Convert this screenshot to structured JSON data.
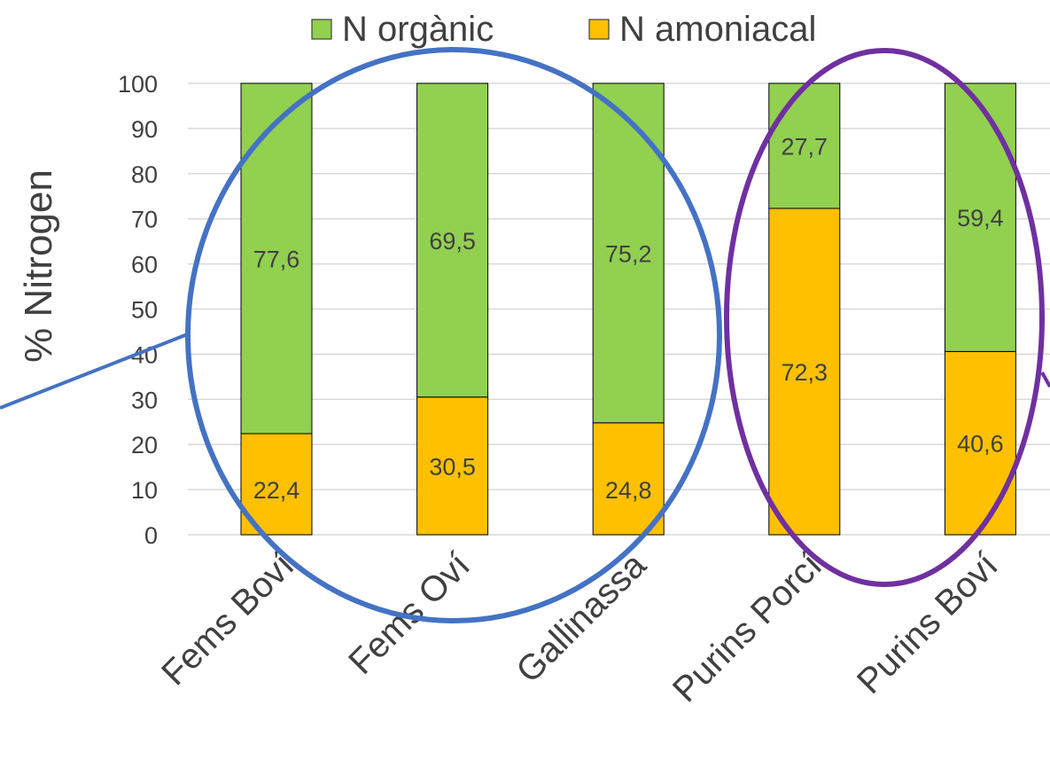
{
  "chart_data": {
    "type": "bar",
    "stacked": true,
    "categories": [
      "Fems Boví",
      "Fems Oví",
      "Gallinassa",
      "Purins Porcí",
      "Purins Boví"
    ],
    "series": [
      {
        "name": "N amoniacal",
        "color": "#FFC000",
        "values": [
          22.4,
          30.5,
          24.8,
          72.3,
          40.6
        ],
        "labels": [
          "22,4",
          "30,5",
          "24,8",
          "72,3",
          "40,6"
        ]
      },
      {
        "name": "N orgànic",
        "color": "#92D050",
        "values": [
          77.6,
          69.5,
          75.2,
          27.7,
          59.4
        ],
        "labels": [
          "77,6",
          "69,5",
          "75,2",
          "27,7",
          "59,4"
        ]
      }
    ],
    "legend_order": [
      "N orgànic",
      "N amoniacal"
    ],
    "legend_position": "top",
    "ylabel": "% Nitrogen",
    "ylim": [
      0,
      100
    ],
    "yticks": [
      0,
      10,
      20,
      30,
      40,
      50,
      60,
      70,
      80,
      90,
      100
    ],
    "grid": true,
    "annotations": [
      {
        "shape": "ellipse",
        "color": "#4472C4",
        "groups": [
          "Fems Boví",
          "Fems Oví",
          "Gallinassa"
        ]
      },
      {
        "shape": "ellipse",
        "color": "#7030A0",
        "groups": [
          "Purins Porcí",
          "Purins Boví"
        ]
      }
    ]
  }
}
